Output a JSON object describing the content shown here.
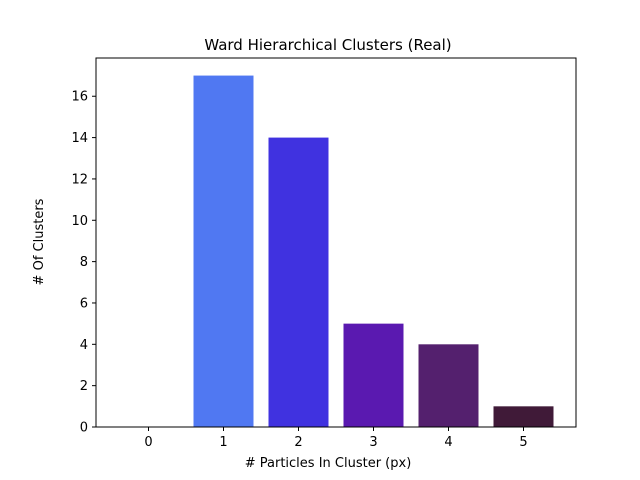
{
  "chart_data": {
    "type": "bar",
    "title": "Ward Hierarchical Clusters (Real)",
    "xlabel": "# Particles In Cluster (px)",
    "ylabel": "# Of Clusters",
    "categories": [
      "0",
      "1",
      "2",
      "3",
      "4",
      "5"
    ],
    "values": [
      0,
      17,
      14,
      5,
      4,
      1
    ],
    "colors": [
      "#ffffff",
      "#5078f2",
      "#4032e0",
      "#5a19b0",
      "#54206e",
      "#401a38"
    ],
    "ylim": [
      0,
      17.85
    ],
    "xlim": [
      -0.7,
      5.7
    ],
    "yticks": [
      0,
      2,
      4,
      6,
      8,
      10,
      12,
      14,
      16
    ],
    "grid": false,
    "legend": "none"
  }
}
